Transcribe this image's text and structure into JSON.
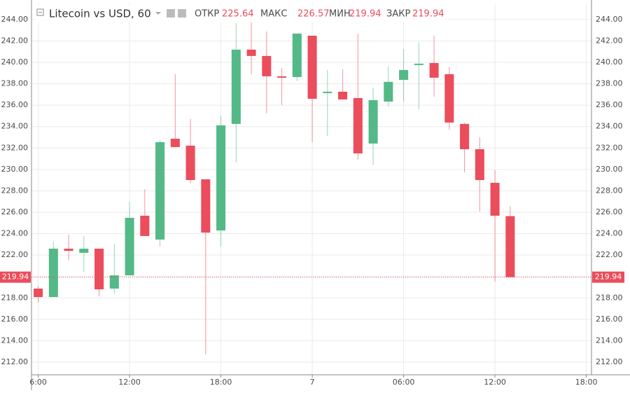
{
  "chart_data": {
    "type": "candlestick",
    "title": "Litecoin vs USD, 60",
    "header": {
      "open_label": "ОТКР",
      "open": 225.64,
      "high_label": "МАКС",
      "high": 226.57,
      "low_label": "МИН",
      "low": 219.94,
      "close_label": "ЗАКР",
      "close": 219.94
    },
    "last_price": 219.94,
    "x": [
      6,
      7,
      8,
      9,
      10,
      11,
      12,
      13,
      14,
      15,
      16,
      17,
      18,
      19,
      20,
      21,
      22,
      23,
      24,
      25,
      26,
      27,
      28,
      29,
      30,
      31,
      32,
      33,
      34,
      35,
      36,
      37
    ],
    "open": [
      218.87,
      218.08,
      222.6,
      222.21,
      222.6,
      218.87,
      220.11,
      225.68,
      223.45,
      232.87,
      232.22,
      229.08,
      224.3,
      234.25,
      241.19,
      240.6,
      238.7,
      238.63,
      242.49,
      237.13,
      237.26,
      236.67,
      232.42,
      236.34,
      238.37,
      239.75,
      239.94,
      238.9,
      234.25,
      231.89,
      228.75,
      225.64
    ],
    "high": [
      219.13,
      223.25,
      223.9,
      223.78,
      222.6,
      223.06,
      226.98,
      228.16,
      232.74,
      238.9,
      234.71,
      229.08,
      235.03,
      243.67,
      244.2,
      242.89,
      239.48,
      242.69,
      242.49,
      239.29,
      239.35,
      242.69,
      237.65,
      239.61,
      241.25,
      241.9,
      242.49,
      239.55,
      234.38,
      233.0,
      229.93,
      226.57
    ],
    "low": [
      217.56,
      218.08,
      221.5,
      220.44,
      218.15,
      218.35,
      220.11,
      223.78,
      222.8,
      232.09,
      228.69,
      212.72,
      222.8,
      230.65,
      238.9,
      235.23,
      236.02,
      238.24,
      232.55,
      233.14,
      236.54,
      230.91,
      230.45,
      235.88,
      236.34,
      235.62,
      236.8,
      233.73,
      229.73,
      226.07,
      219.52,
      219.94
    ],
    "close": [
      218.08,
      222.6,
      222.4,
      222.6,
      218.8,
      220.11,
      225.48,
      223.78,
      232.55,
      232.09,
      229.01,
      224.1,
      234.12,
      241.19,
      240.6,
      238.7,
      238.57,
      242.69,
      236.6,
      237.26,
      236.54,
      231.5,
      236.47,
      238.18,
      239.29,
      239.88,
      238.57,
      234.38,
      231.89,
      229.01,
      225.68,
      219.94
    ],
    "up_color": "#53b987",
    "down_color": "#eb4d5c",
    "xlim": [
      5.56,
      42.34
    ],
    "xticks": [
      {
        "value": 6,
        "label": "6:00"
      },
      {
        "value": 12,
        "label": "12:00"
      },
      {
        "value": 18,
        "label": "18:00"
      },
      {
        "value": 24,
        "label": "7"
      },
      {
        "value": 30,
        "label": "06:00"
      },
      {
        "value": 36,
        "label": "12:00"
      },
      {
        "value": 42,
        "label": "18:00"
      }
    ],
    "ylim": [
      210.82,
      245.5
    ],
    "yticks": [
      {
        "value": 212,
        "label": "212.00"
      },
      {
        "value": 214,
        "label": "214.00"
      },
      {
        "value": 216,
        "label": "216.00"
      },
      {
        "value": 218,
        "label": "218.00"
      },
      {
        "value": 220,
        "label": "220.00"
      },
      {
        "value": 222,
        "label": "222.00"
      },
      {
        "value": 224,
        "label": "224.00"
      },
      {
        "value": 226,
        "label": "226.00"
      },
      {
        "value": 228,
        "label": "228.00"
      },
      {
        "value": 230,
        "label": "230.00"
      },
      {
        "value": 232,
        "label": "232.00"
      },
      {
        "value": 234,
        "label": "234.00"
      },
      {
        "value": 236,
        "label": "236.00"
      },
      {
        "value": 238,
        "label": "238.00"
      },
      {
        "value": 240,
        "label": "240.00"
      },
      {
        "value": 242,
        "label": "242.00"
      },
      {
        "value": 244,
        "label": "244.00"
      }
    ],
    "grid": true
  }
}
